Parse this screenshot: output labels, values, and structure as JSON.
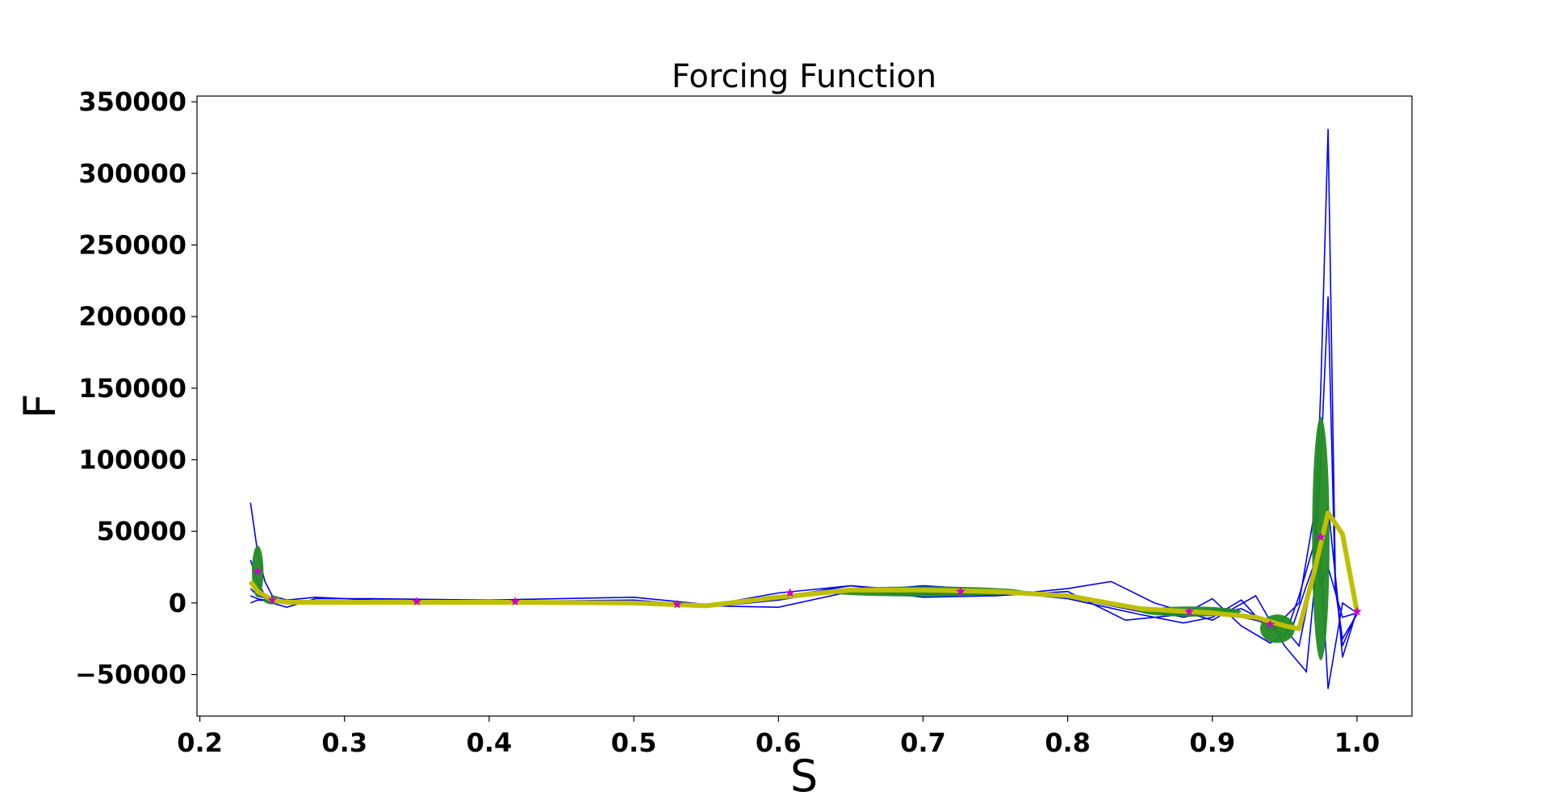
{
  "chart_data": {
    "type": "line",
    "title": "Forcing Function",
    "xlabel": "S",
    "ylabel": "F",
    "xlim": [
      0.198,
      1.038
    ],
    "ylim": [
      -79000,
      354000
    ],
    "xticks": [
      0.2,
      0.3,
      0.4,
      0.5,
      0.6,
      0.7,
      0.8,
      0.9,
      1.0
    ],
    "xtick_labels": [
      "0.2",
      "0.3",
      "0.4",
      "0.5",
      "0.6",
      "0.7",
      "0.8",
      "0.9",
      "1.0"
    ],
    "yticks": [
      -50000,
      0,
      50000,
      100000,
      150000,
      200000,
      250000,
      300000,
      350000
    ],
    "ytick_labels": [
      "−50000",
      "0",
      "50000",
      "100000",
      "150000",
      "200000",
      "250000",
      "300000",
      "350000"
    ],
    "grid": false,
    "colors": {
      "demonstrations": "#0000ff",
      "covariance_ellipses": "#228b22",
      "mean": "#bfbf00",
      "points": "#cc00cc"
    },
    "series": [
      {
        "role": "demonstration",
        "x": [
          0.235,
          0.24,
          0.245,
          0.25,
          0.26,
          0.28,
          0.32,
          0.4,
          0.5,
          0.55,
          0.6,
          0.65,
          0.7,
          0.75,
          0.8,
          0.85,
          0.88,
          0.9,
          0.93,
          0.95,
          0.96,
          0.97,
          0.975,
          0.98,
          0.985,
          0.99,
          1.0
        ],
        "y": [
          70000,
          35000,
          15000,
          5000,
          2000,
          4000,
          2000,
          1000,
          2000,
          -2000,
          -3000,
          8000,
          12000,
          9000,
          6000,
          -4000,
          -10000,
          -6000,
          -12000,
          -18000,
          -30000,
          20000,
          150000,
          331000,
          20000,
          -38000,
          -5000
        ]
      },
      {
        "role": "demonstration",
        "x": [
          0.235,
          0.24,
          0.245,
          0.25,
          0.26,
          0.28,
          0.32,
          0.4,
          0.5,
          0.55,
          0.6,
          0.65,
          0.7,
          0.75,
          0.8,
          0.83,
          0.86,
          0.9,
          0.93,
          0.95,
          0.965,
          0.97,
          0.975,
          0.98,
          0.985,
          0.99,
          1.0
        ],
        "y": [
          30000,
          15000,
          5000,
          0,
          -3000,
          3000,
          3000,
          2000,
          4000,
          -1000,
          4000,
          12000,
          8000,
          5000,
          10000,
          15000,
          0,
          -12000,
          5000,
          -30000,
          -48000,
          5000,
          100000,
          214000,
          10000,
          -25000,
          -8000
        ]
      },
      {
        "role": "demonstration",
        "x": [
          0.235,
          0.24,
          0.25,
          0.26,
          0.28,
          0.32,
          0.4,
          0.5,
          0.55,
          0.6,
          0.65,
          0.7,
          0.75,
          0.8,
          0.85,
          0.88,
          0.9,
          0.92,
          0.94,
          0.96,
          0.97,
          0.975,
          0.98,
          0.99,
          1.0
        ],
        "y": [
          10000,
          5000,
          2000,
          0,
          1000,
          1000,
          1000,
          500,
          -2000,
          7000,
          12000,
          6000,
          8000,
          3000,
          -8000,
          -14000,
          -10000,
          2000,
          -20000,
          0,
          60000,
          30000,
          -60000,
          0,
          -7000
        ]
      },
      {
        "role": "demonstration",
        "x": [
          0.235,
          0.24,
          0.25,
          0.26,
          0.28,
          0.32,
          0.4,
          0.5,
          0.55,
          0.6,
          0.65,
          0.7,
          0.75,
          0.8,
          0.84,
          0.88,
          0.9,
          0.92,
          0.94,
          0.955,
          0.965,
          0.975,
          0.98,
          0.99,
          1.0
        ],
        "y": [
          5000,
          3000,
          1000,
          500,
          500,
          500,
          500,
          1000,
          -3000,
          2000,
          10000,
          4000,
          5000,
          8000,
          -12000,
          -8000,
          3000,
          -16000,
          -28000,
          -18000,
          12000,
          40000,
          68000,
          -30000,
          -6000
        ]
      },
      {
        "role": "demonstration",
        "x": [
          0.235,
          0.24,
          0.25,
          0.26,
          0.28,
          0.32,
          0.4,
          0.5,
          0.55,
          0.6,
          0.65,
          0.7,
          0.75,
          0.8,
          0.85,
          0.88,
          0.9,
          0.92,
          0.94,
          0.95,
          0.96,
          0.97,
          0.975,
          0.98,
          0.99,
          1.0
        ],
        "y": [
          0,
          2000,
          1500,
          500,
          500,
          500,
          500,
          500,
          -1000,
          5000,
          9000,
          10000,
          7000,
          4000,
          -6000,
          -5000,
          -8000,
          -4000,
          -14000,
          -24000,
          5000,
          40000,
          12000,
          25000,
          -10000,
          -7000
        ]
      },
      {
        "role": "mean",
        "x": [
          0.235,
          0.24,
          0.25,
          0.26,
          0.3,
          0.35,
          0.42,
          0.5,
          0.55,
          0.6,
          0.65,
          0.7,
          0.75,
          0.8,
          0.85,
          0.9,
          0.93,
          0.95,
          0.96,
          0.97,
          0.98,
          0.99,
          1.0
        ],
        "y": [
          15000,
          8000,
          2000,
          500,
          500,
          500,
          500,
          0,
          -2000,
          4000,
          9000,
          9000,
          8000,
          5000,
          -4000,
          -7000,
          -10000,
          -16000,
          -18000,
          20000,
          63000,
          48000,
          -6000
        ]
      }
    ],
    "points": {
      "x": [
        0.24,
        0.25,
        0.35,
        0.418,
        0.53,
        0.608,
        0.726,
        0.884,
        0.94,
        0.975,
        1.0
      ],
      "y": [
        22000,
        2000,
        1000,
        1000,
        -1000,
        7000,
        8000,
        -6000,
        -15000,
        46000,
        -6000
      ]
    },
    "ellipses": [
      {
        "cx": 0.24,
        "cy": 22000,
        "rx": 0.004,
        "ry": 18000,
        "angle": 0
      },
      {
        "cx": 0.25,
        "cy": 2000,
        "rx": 0.006,
        "ry": 3000,
        "angle": 0
      },
      {
        "cx": 0.7,
        "cy": 8000,
        "rx": 0.07,
        "ry": 3500,
        "angle": 0
      },
      {
        "cx": 0.885,
        "cy": -6000,
        "rx": 0.035,
        "ry": 3500,
        "angle": 0
      },
      {
        "cx": 0.945,
        "cy": -18000,
        "rx": 0.012,
        "ry": 10000,
        "angle": 0
      },
      {
        "cx": 0.975,
        "cy": 45000,
        "rx": 0.006,
        "ry": 85000,
        "angle": 0
      }
    ]
  }
}
